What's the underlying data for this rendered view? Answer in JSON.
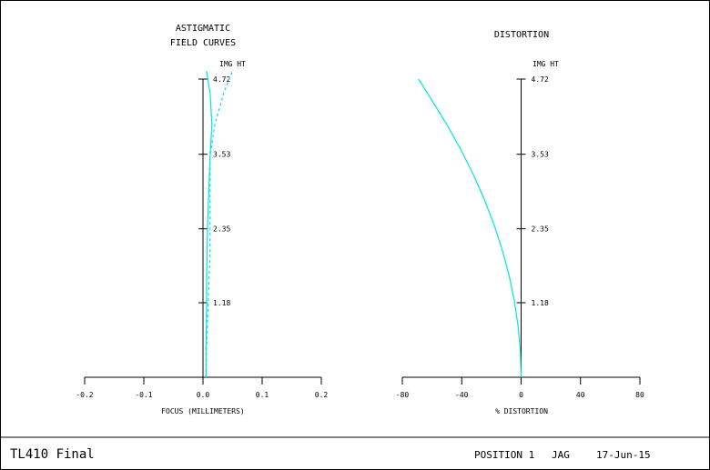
{
  "chart_data": [
    {
      "type": "line",
      "title_lines": [
        "ASTIGMATIC",
        "FIELD CURVES"
      ],
      "xlabel": "FOCUS (MILLIMETERS)",
      "ylabel": "IMG HT",
      "xlim": [
        -0.2,
        0.2
      ],
      "ylim": [
        0,
        4.72
      ],
      "x_ticks": [
        -0.2,
        -0.1,
        0.0,
        0.1,
        0.2
      ],
      "x_tick_labels": [
        "-0.2",
        "-0.1",
        "0.0",
        "0.1",
        "0.2"
      ],
      "y_ticks": [
        1.18,
        2.35,
        3.53,
        4.72
      ],
      "y_tick_labels": [
        "1.18",
        "2.35",
        "3.53",
        "4.72"
      ],
      "series": [
        {
          "style": "solid",
          "color": "#00e5e5",
          "x": [
            0.005,
            0.005,
            0.006,
            0.006,
            0.007,
            0.008,
            0.01,
            0.012,
            0.015,
            0.012,
            0.006
          ],
          "y": [
            0.0,
            0.5,
            1.0,
            1.5,
            2.0,
            2.5,
            3.0,
            3.5,
            4.0,
            4.5,
            4.85
          ]
        },
        {
          "style": "dashed",
          "color": "#00e5e5",
          "x": [
            0.005,
            0.006,
            0.008,
            0.01,
            0.012,
            0.012,
            0.012,
            0.012,
            0.02,
            0.035,
            0.05
          ],
          "y": [
            0.0,
            0.5,
            1.0,
            1.5,
            2.0,
            2.5,
            3.0,
            3.5,
            4.0,
            4.5,
            4.85
          ]
        }
      ]
    },
    {
      "type": "line",
      "title": "DISTORTION",
      "xlabel": "% DISTORTION",
      "ylabel": "IMG HT",
      "xlim": [
        -80,
        80
      ],
      "ylim": [
        0,
        4.72
      ],
      "x_ticks": [
        -80,
        -40,
        0,
        40,
        80
      ],
      "x_tick_labels": [
        "-80",
        "-40",
        "0",
        "40",
        "80"
      ],
      "y_ticks": [
        1.18,
        2.35,
        3.53,
        4.72
      ],
      "y_tick_labels": [
        "1.18",
        "2.35",
        "3.53",
        "4.72"
      ],
      "series": [
        {
          "style": "solid",
          "color": "#00e5e5",
          "x": [
            0,
            -0.5,
            -2,
            -4.5,
            -8,
            -12.5,
            -18,
            -24.5,
            -32,
            -40.5,
            -50,
            -60.5,
            -69
          ],
          "y": [
            0,
            0.4,
            0.8,
            1.2,
            1.6,
            2.0,
            2.4,
            2.8,
            3.2,
            3.6,
            4.0,
            4.4,
            4.72
          ]
        }
      ]
    }
  ],
  "footer": {
    "left": "TL410 Final",
    "position": "POSITION 1",
    "author": "JAG",
    "date": "17-Jun-15"
  }
}
